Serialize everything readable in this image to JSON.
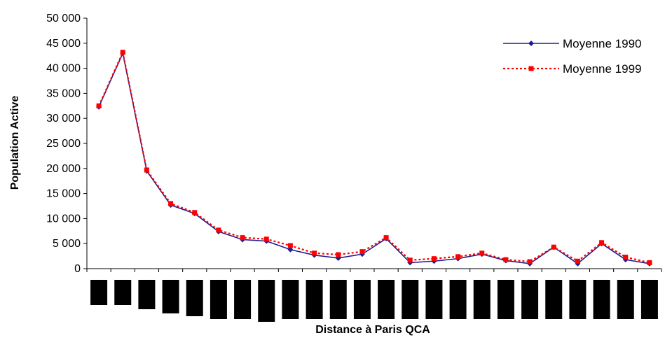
{
  "chart_data": {
    "type": "line",
    "ylabel": "Population Active",
    "xlabel": "Distance à Paris QCA",
    "ylim": [
      0,
      50000
    ],
    "yticks": [
      0,
      5000,
      10000,
      15000,
      20000,
      25000,
      30000,
      35000,
      40000,
      45000,
      50000
    ],
    "ytick_labels": [
      "0",
      "5 000",
      "10 000",
      "15 000",
      "20 000",
      "25 000",
      "30 000",
      "35 000",
      "40 000",
      "45 000",
      "50 000"
    ],
    "legend_position": "top-right",
    "grid": false,
    "x": [
      1,
      2,
      3,
      4,
      5,
      6,
      7,
      8,
      9,
      10,
      11,
      12,
      13,
      14,
      15,
      16,
      17,
      18,
      19,
      20,
      21,
      22,
      23,
      24
    ],
    "series": [
      {
        "name": "Moyenne 1990",
        "color": "#1f1f8f",
        "marker": "diamond",
        "line": "solid",
        "values": [
          32300,
          43000,
          19500,
          12700,
          11000,
          7400,
          5800,
          5500,
          3800,
          2700,
          2100,
          2900,
          6000,
          1200,
          1500,
          2000,
          2900,
          1600,
          1000,
          4300,
          1000,
          5000,
          1800,
          1000
        ]
      },
      {
        "name": "Moyenne 1999",
        "color": "#ff0000",
        "marker": "square",
        "line": "dotted",
        "values": [
          32500,
          43200,
          19700,
          13000,
          11200,
          7700,
          6200,
          5900,
          4600,
          3100,
          2800,
          3400,
          6200,
          1700,
          2000,
          2400,
          3100,
          1800,
          1400,
          4300,
          1500,
          5200,
          2300,
          1200
        ]
      }
    ]
  }
}
